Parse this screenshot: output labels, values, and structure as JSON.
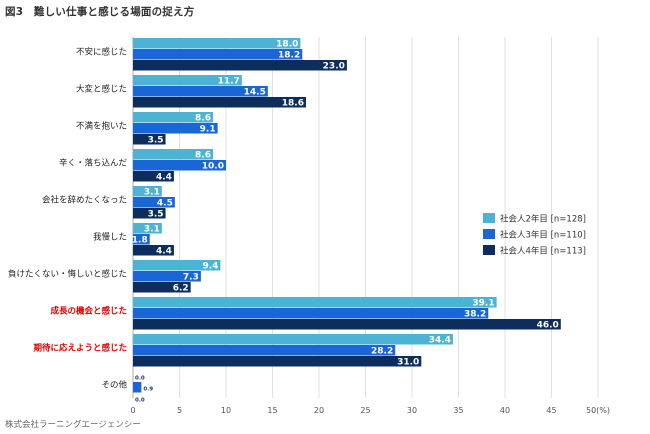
{
  "title": "図3　難しい仕事と感じる場面の捉え方",
  "footer": "株式会社ラーニングエージェンシー",
  "chart_data": {
    "type": "bar",
    "orientation": "horizontal",
    "title": "図3　難しい仕事と感じる場面の捉え方",
    "categories": [
      "不安に感じた",
      "大変と感じた",
      "不満を抱いた",
      "辛く・落ち込んだ",
      "会社を辞めたくなった",
      "我慢した",
      "負けたくない・悔しいと感じた",
      "成長の機会と感じた",
      "期待に応えようと感じた",
      "その他"
    ],
    "highlighted_categories": [
      "成長の機会と感じた",
      "期待に応えようと感じた"
    ],
    "series": [
      {
        "name": "社会人2年目 [n=128]",
        "color": "#4db3d4",
        "values": [
          18.0,
          11.7,
          8.6,
          8.6,
          3.1,
          3.1,
          9.4,
          39.1,
          34.4,
          0.0
        ]
      },
      {
        "name": "社会人3年目 [n=110]",
        "color": "#1a66d6",
        "values": [
          18.2,
          14.5,
          9.1,
          10.0,
          4.5,
          1.8,
          7.3,
          38.2,
          28.2,
          0.9
        ]
      },
      {
        "name": "社会人4年目 [n=113]",
        "color": "#0d2d5c",
        "values": [
          23.0,
          18.6,
          3.5,
          4.4,
          3.5,
          4.4,
          6.2,
          46.0,
          31.0,
          0.0
        ]
      }
    ],
    "xlim": [
      0,
      50
    ],
    "xticks": [
      "0",
      "5",
      "10",
      "15",
      "20",
      "25",
      "30",
      "35",
      "40",
      "45",
      "50(%)"
    ],
    "grid": true,
    "legend": "right"
  }
}
